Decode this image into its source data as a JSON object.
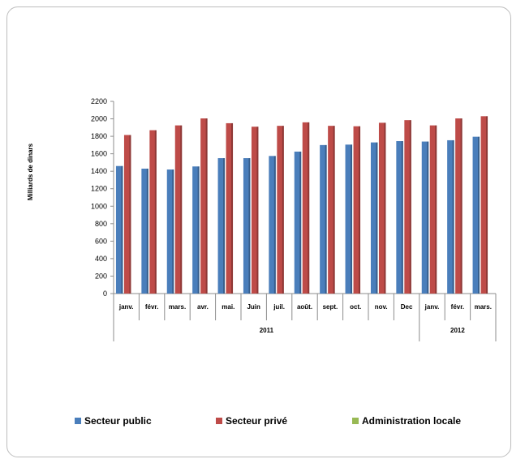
{
  "chart_data": {
    "type": "bar",
    "ylabel": "Milliards de dinars",
    "ylim": [
      0,
      2200
    ],
    "yticks": [
      0,
      200,
      400,
      600,
      800,
      1000,
      1200,
      1400,
      1600,
      1800,
      2000,
      2200
    ],
    "categories": [
      "janv.",
      "févr.",
      "mars.",
      "avr.",
      "mai.",
      "Juin",
      "juil.",
      "août.",
      "sept.",
      "oct.",
      "nov.",
      "Dec",
      "janv.",
      "févr.",
      "mars."
    ],
    "groups": [
      {
        "label": "2011",
        "count": 12
      },
      {
        "label": "2012",
        "count": 3
      }
    ],
    "series": [
      {
        "name": "Secteur public",
        "color": "#4a7ebb",
        "values": [
          1460,
          1430,
          1420,
          1455,
          1550,
          1550,
          1575,
          1625,
          1700,
          1705,
          1730,
          1745,
          1740,
          1755,
          1795
        ]
      },
      {
        "name": "Secteur privé",
        "color": "#be4b48",
        "values": [
          1815,
          1870,
          1925,
          2005,
          1950,
          1910,
          1920,
          1960,
          1920,
          1915,
          1955,
          1985,
          1925,
          2005,
          2030
        ]
      },
      {
        "name": "Administration locale",
        "color": "#98b954",
        "values": [
          0,
          0,
          0,
          0,
          0,
          0,
          0,
          0,
          0,
          0,
          0,
          0,
          0,
          0,
          0
        ]
      }
    ],
    "grid": false,
    "legend": "bottom"
  }
}
